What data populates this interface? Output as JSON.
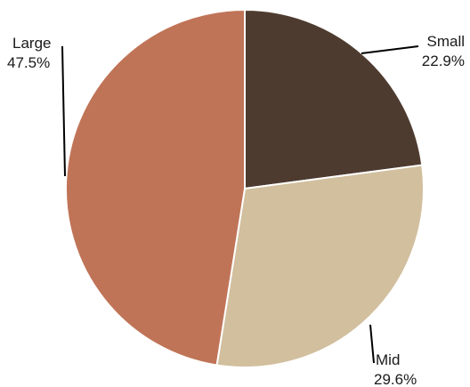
{
  "chart_data": {
    "type": "pie",
    "title": "",
    "slices": [
      {
        "name": "Small",
        "value": 22.9,
        "label": "22.9%",
        "color": "#4e3b2f"
      },
      {
        "name": "Mid",
        "value": 29.6,
        "label": "29.6%",
        "color": "#d1bf9e"
      },
      {
        "name": "Large",
        "value": 47.5,
        "label": "47.5%",
        "color": "#c07457"
      }
    ],
    "start_angle_deg": 0,
    "direction": "clockwise",
    "slice_border_color": "#ffffff",
    "leader_line_color": "#000000",
    "legend": "none"
  }
}
